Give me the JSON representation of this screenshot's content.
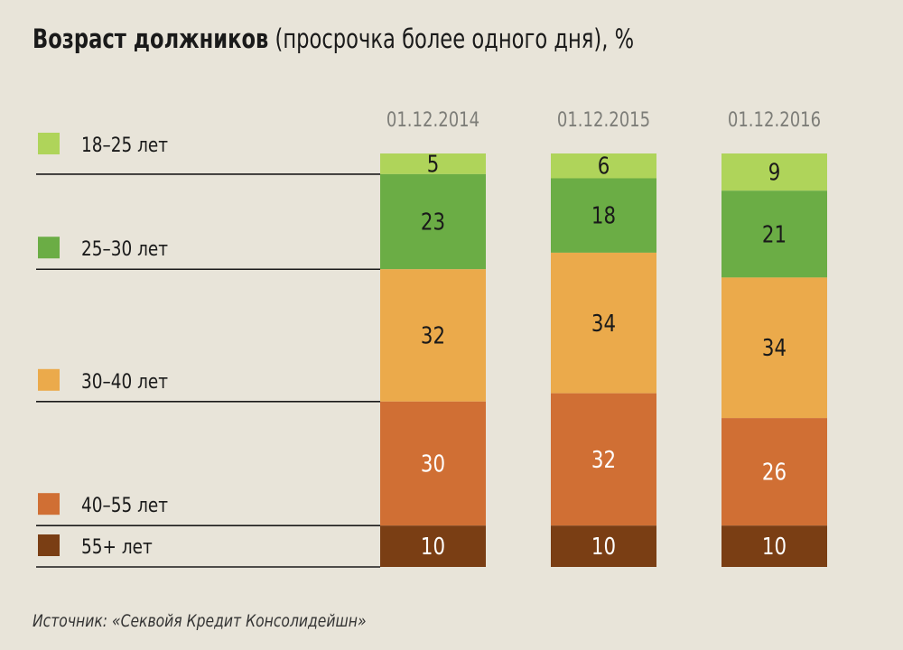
{
  "title": {
    "main": "Возраст должников",
    "sub": "(просрочка более одного дня), %"
  },
  "source": "Источник: «Секвойя Кредит Консолидейшн»",
  "chart_data": {
    "type": "bar",
    "stacked": true,
    "orientation": "vertical",
    "categories": [
      "01.12.2014",
      "01.12.2015",
      "01.12.2016"
    ],
    "series": [
      {
        "name": "18–25 лет",
        "color": "#afd45a",
        "values": [
          5,
          6,
          9
        ]
      },
      {
        "name": "25–30 лет",
        "color": "#6bad45",
        "values": [
          23,
          18,
          21
        ]
      },
      {
        "name": "30–40 лет",
        "color": "#ebaa4b",
        "values": [
          32,
          34,
          34
        ]
      },
      {
        "name": "40–55 лет",
        "color": "#d06f34",
        "values": [
          30,
          32,
          26
        ]
      },
      {
        "name": "55+ лет",
        "color": "#7a3e14",
        "values": [
          10,
          10,
          10
        ]
      }
    ],
    "ylim": [
      0,
      100
    ],
    "grid": false,
    "legend": "left"
  }
}
